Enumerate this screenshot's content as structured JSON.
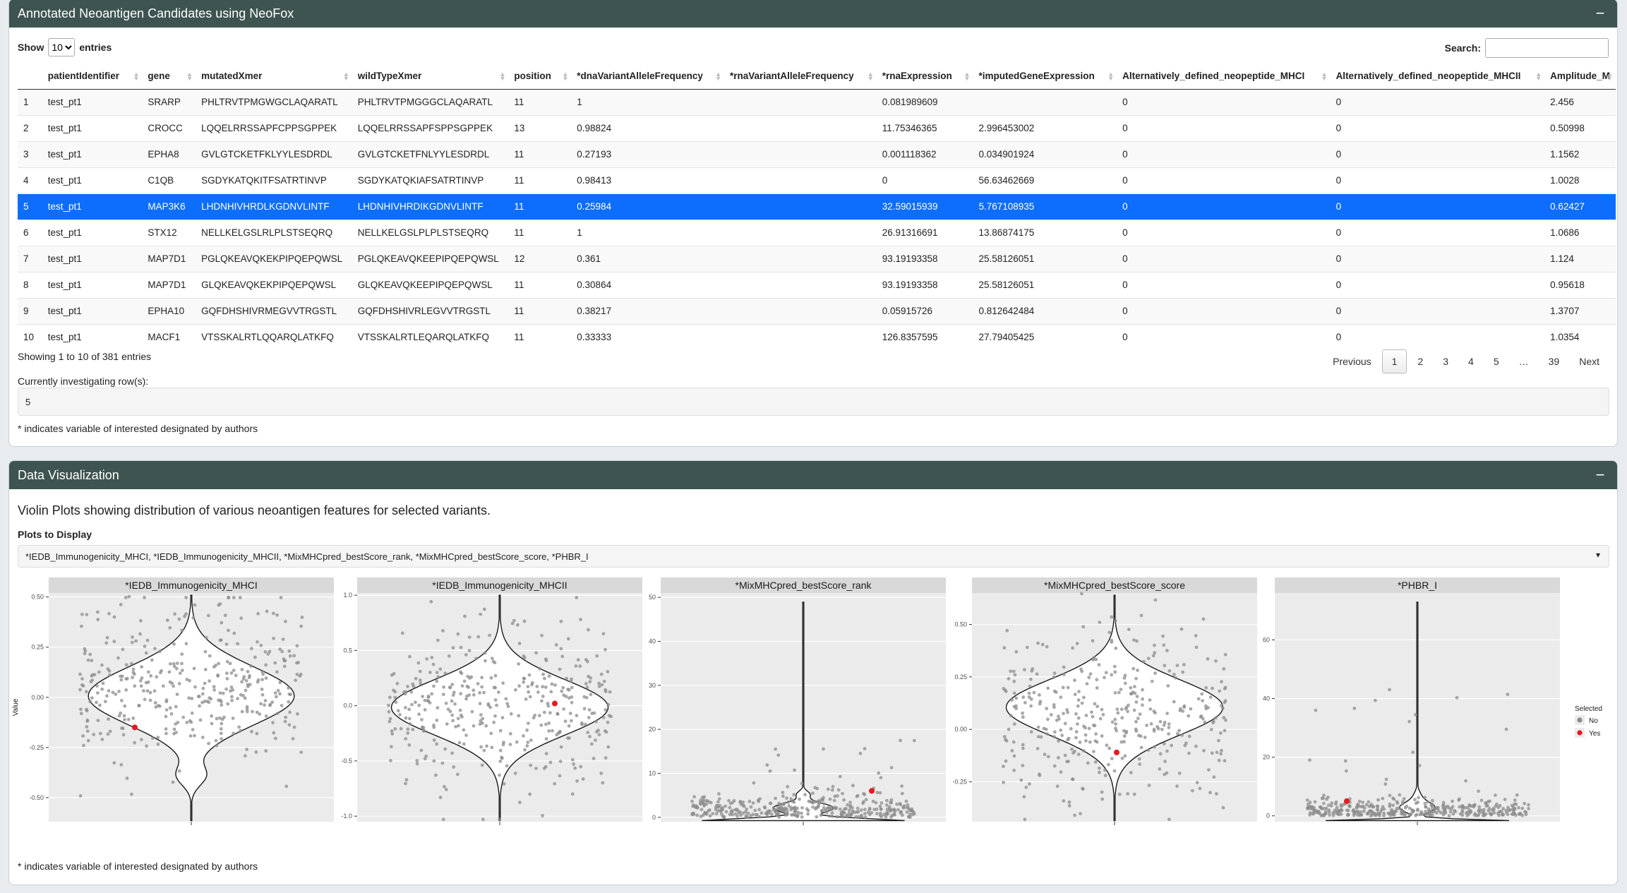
{
  "table_box": {
    "title": "Annotated Neoantigen Candidates using NeoFox",
    "collapse_label": "−",
    "show_label": "Show",
    "entries_label": "entries",
    "page_length": "10",
    "search_label": "Search:",
    "search_value": "",
    "columns": [
      "",
      "patientIdentifier",
      "gene",
      "mutatedXmer",
      "wildTypeXmer",
      "position",
      "*dnaVariantAlleleFrequency",
      "*rnaVariantAlleleFrequency",
      "*rnaExpression",
      "*imputedGeneExpression",
      "Alternatively_defined_neopeptide_MHCI",
      "Alternatively_defined_neopeptide_MHCII",
      "Amplitude_M"
    ],
    "rows": [
      [
        "1",
        "test_pt1",
        "SRARP",
        "PHLTRVTPMGWGCLAQARATL",
        "PHLTRVTPMGGGCLAQARATL",
        "11",
        "1",
        "",
        "0.081989609",
        "",
        "0",
        "0",
        "2.456"
      ],
      [
        "2",
        "test_pt1",
        "CROCC",
        "LQQELRRSSAPFCPPSGPPEK",
        "LQQELRRSSAPFSPPSGPPEK",
        "13",
        "0.98824",
        "",
        "11.75346365",
        "2.996453002",
        "0",
        "0",
        "0.50998"
      ],
      [
        "3",
        "test_pt1",
        "EPHA8",
        "GVLGTCKETFKLYYLESDRDL",
        "GVLGTCKETFNLYYLESDRDL",
        "11",
        "0.27193",
        "",
        "0.001118362",
        "0.034901924",
        "0",
        "0",
        "1.1562"
      ],
      [
        "4",
        "test_pt1",
        "C1QB",
        "SGDYKATQKITFSATRTINVP",
        "SGDYKATQKIAFSATRTINVP",
        "11",
        "0.98413",
        "",
        "0",
        "56.63462669",
        "0",
        "0",
        "1.0028"
      ],
      [
        "5",
        "test_pt1",
        "MAP3K6",
        "LHDNHIVHRDLKGDNVLINTF",
        "LHDNHIVHRDIKGDNVLINTF",
        "11",
        "0.25984",
        "",
        "32.59015939",
        "5.767108935",
        "0",
        "0",
        "0.62427"
      ],
      [
        "6",
        "test_pt1",
        "STX12",
        "NELLKELGSLRLPLSTSEQRQ",
        "NELLKELGSLPLPLSTSEQRQ",
        "11",
        "1",
        "",
        "26.91316691",
        "13.86874175",
        "0",
        "0",
        "1.0686"
      ],
      [
        "7",
        "test_pt1",
        "MAP7D1",
        "PGLQKEAVQKEKPIPQEPQWSL",
        "PGLQKEAVQKEEPIPQEPQWSL",
        "12",
        "0.361",
        "",
        "93.19193358",
        "25.58126051",
        "0",
        "0",
        "1.124"
      ],
      [
        "8",
        "test_pt1",
        "MAP7D1",
        "GLQKEAVQKEKPIPQEPQWSL",
        "GLQKEAVQKEEPIPQEPQWSL",
        "11",
        "0.30864",
        "",
        "93.19193358",
        "25.58126051",
        "0",
        "0",
        "0.95618"
      ],
      [
        "9",
        "test_pt1",
        "EPHA10",
        "GQFDHSHIVRMEGVVTRGSTL",
        "GQFDHSHIVRLEGVVTRGSTL",
        "11",
        "0.38217",
        "",
        "0.05915726",
        "0.812642484",
        "0",
        "0",
        "1.3707"
      ],
      [
        "10",
        "test_pt1",
        "MACF1",
        "VTSSKALRTLQQARQLATKFQ",
        "VTSSKALRTLEQARQLATKFQ",
        "11",
        "0.33333",
        "",
        "126.8357595",
        "27.79405425",
        "0",
        "0",
        "1.0354"
      ]
    ],
    "selected_row": 5,
    "info": "Showing 1 to 10 of 381 entries",
    "pager": [
      "Previous",
      "1",
      "2",
      "3",
      "4",
      "5",
      "…",
      "39",
      "Next"
    ],
    "investigating_label": "Currently investigating row(s):",
    "investigating_value": "5",
    "footnote": "* indicates variable of interested designated by authors"
  },
  "viz_box": {
    "title": "Data Visualization",
    "collapse_label": "−",
    "description": "Violin Plots showing distribution of various neoantigen features for selected variants.",
    "plots_label": "Plots to Display",
    "plots_value": "*IEDB_Immunogenicity_MHCI, *IEDB_Immunogenicity_MHCII, *MixMHCpred_bestScore_rank, *MixMHCpred_bestScore_score, *PHBR_I",
    "caret_icon": "caret-down-icon",
    "footnote": "* indicates variable of interested designated by authors"
  },
  "chart_data": [
    {
      "type": "violin",
      "title": "*IEDB_Immunogenicity_MHCI",
      "ylabel": "Value",
      "ylim": [
        -0.62,
        0.52
      ],
      "yticks": [
        0.5,
        0.25,
        0.0,
        -0.25,
        -0.5
      ],
      "ytick_labels": [
        "0.50",
        "0.25",
        "0.00",
        "-0.25",
        "-0.50"
      ],
      "xtick": "",
      "selected_value": -0.15,
      "n_points": 380
    },
    {
      "type": "violin",
      "title": "*IEDB_Immunogenicity_MHCII",
      "ylabel": "",
      "ylim": [
        -1.05,
        1.02
      ],
      "yticks": [
        1.0,
        0.5,
        0.0,
        -0.5,
        -1.0
      ],
      "ytick_labels": [
        "1.0",
        "0.5",
        "0.0",
        "-0.5",
        "-1.0"
      ],
      "xtick": "",
      "selected_value": 0.02,
      "n_points": 380
    },
    {
      "type": "violin",
      "title": "*MixMHCpred_bestScore_rank",
      "ylabel": "",
      "ylim": [
        -1,
        51
      ],
      "yticks": [
        50,
        40,
        30,
        20,
        10,
        0
      ],
      "ytick_labels": [
        "50",
        "40",
        "30",
        "20",
        "10",
        "0"
      ],
      "xtick": "",
      "selected_value": 6,
      "n_points": 380
    },
    {
      "type": "violin",
      "title": "*MixMHCpred_bestScore_score",
      "ylabel": "",
      "ylim": [
        -0.44,
        0.65
      ],
      "yticks": [
        0.5,
        0.25,
        0.0,
        -0.25
      ],
      "ytick_labels": [
        "0.50",
        "0.25",
        "0.00",
        "-0.25"
      ],
      "xtick": "",
      "selected_value": -0.11,
      "n_points": 380
    },
    {
      "type": "violin",
      "title": "*PHBR_I",
      "ylabel": "",
      "ylim": [
        -2,
        76
      ],
      "yticks": [
        60,
        40,
        20,
        0
      ],
      "ytick_labels": [
        "60",
        "40",
        "20",
        "0"
      ],
      "xtick": "",
      "selected_value": 5,
      "n_points": 380
    }
  ],
  "legend": {
    "title": "Selected",
    "items": [
      {
        "label": "No",
        "color": "#8c8c8c"
      },
      {
        "label": "Yes",
        "color": "#e41a1c"
      }
    ]
  },
  "colors": {
    "header": "#3e5450",
    "selected_row": "#0d6efd",
    "panel_bg": "#ebebeb",
    "strip_bg": "#d9d9d9"
  }
}
